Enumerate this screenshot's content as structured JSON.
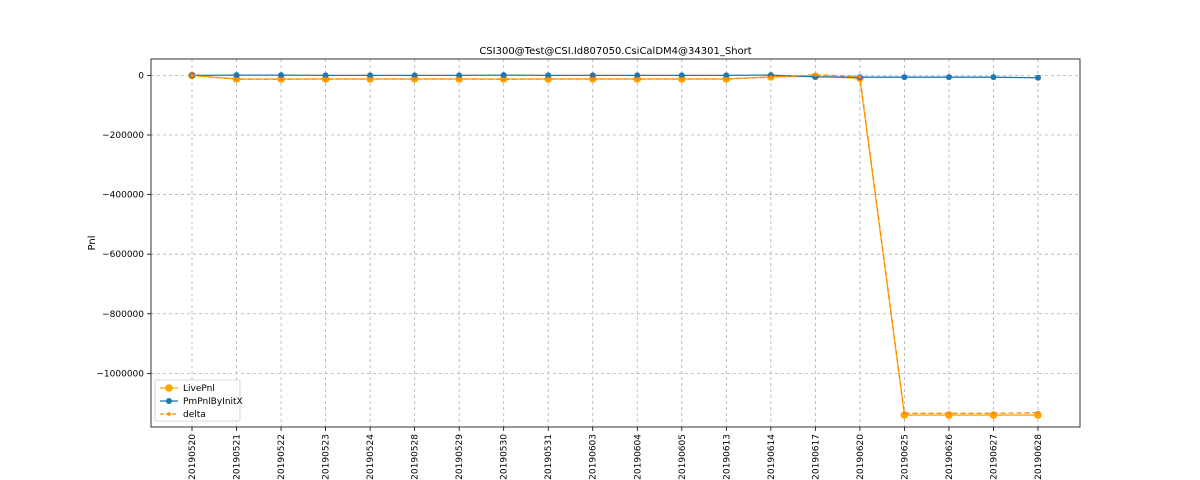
{
  "chart_data": {
    "type": "line",
    "title": "CSI300@Test@CSI.Id807050.CsiCalDM4@34301_Short",
    "xlabel": "",
    "ylabel": "Pnl",
    "categories": [
      "20190520",
      "20190521",
      "20190522",
      "20190523",
      "20190524",
      "20190528",
      "20190529",
      "20190530",
      "20190531",
      "20190603",
      "20190604",
      "20190605",
      "20190613",
      "20190614",
      "20190617",
      "20190620",
      "20190625",
      "20190626",
      "20190627",
      "20190628"
    ],
    "ylim": [
      -1180000,
      55000
    ],
    "yticks": [
      0,
      -200000,
      -400000,
      -600000,
      -800000,
      -1000000
    ],
    "ytick_labels": [
      "0",
      "−200000",
      "−400000",
      "−600000",
      "−800000",
      "−1000000"
    ],
    "grid": true,
    "legend_position": "lower-left",
    "series": [
      {
        "name": "LivePnl",
        "color": "#ffa500",
        "style": "solid",
        "marker": "circle-large",
        "values": [
          0,
          -12000,
          -12000,
          -12000,
          -12000,
          -12000,
          -12000,
          -12000,
          -12000,
          -12000,
          -12000,
          -12000,
          -12000,
          -5000,
          -3000,
          -10000,
          -1140000,
          -1140000,
          -1140000,
          -1140000
        ]
      },
      {
        "name": "PmPnlByInitX",
        "color": "#1f77b4",
        "style": "solid",
        "marker": "circle",
        "values": [
          0,
          1000,
          1000,
          0,
          0,
          0,
          0,
          1000,
          0,
          0,
          0,
          0,
          0,
          1000,
          -5000,
          -6000,
          -6000,
          -6000,
          -6000,
          -8000
        ]
      },
      {
        "name": "delta",
        "color": "#ff8c00",
        "style": "dashed",
        "marker": "dot",
        "values": [
          0,
          -13000,
          -13000,
          -12000,
          -12000,
          -12000,
          -12000,
          -13000,
          -12000,
          -12000,
          -12000,
          -12000,
          -12000,
          -6000,
          2000,
          -4000,
          -1134000,
          -1134000,
          -1134000,
          -1132000
        ]
      }
    ]
  }
}
